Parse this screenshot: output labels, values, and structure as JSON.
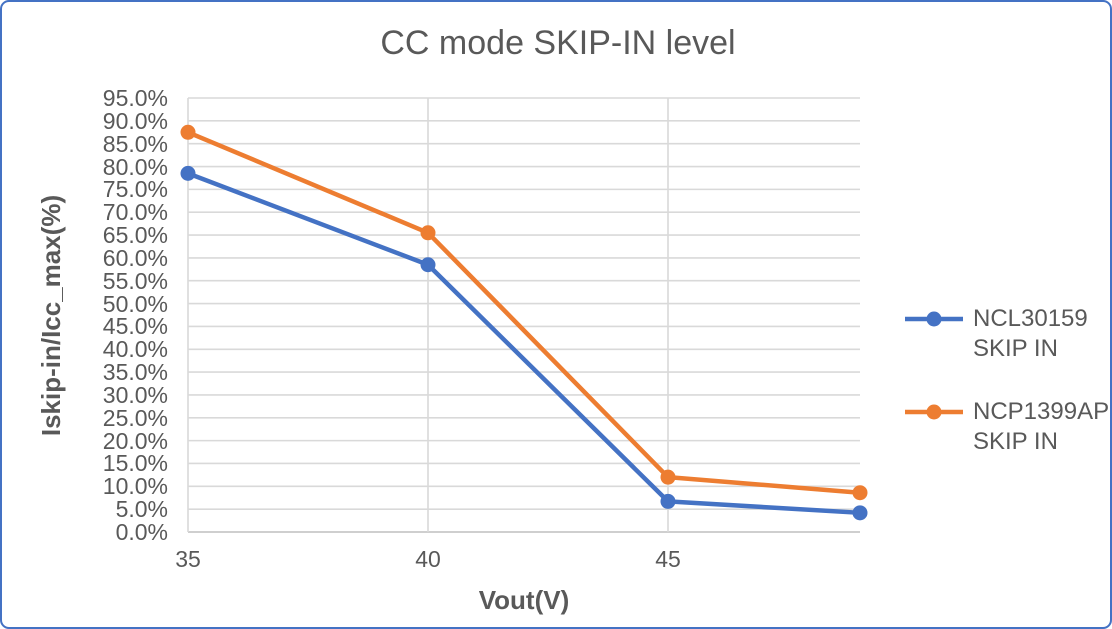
{
  "chart_style": {
    "border_color": "#4472C4",
    "background": "#FFFFFF",
    "text_color": "#595959",
    "gridline_color": "#D9D9D9",
    "axis_line_color": "#BFBFBF"
  },
  "chart_data": {
    "type": "line",
    "title": "CC mode SKIP-IN level",
    "xlabel": "Vout(V)",
    "ylabel": "Iskip-in/Icc_max(%)",
    "x": [
      35,
      40,
      45,
      49
    ],
    "series": [
      {
        "name": "NCL30159 SKIP IN",
        "color": "#4472C4",
        "marker": "circle",
        "values": [
          78.5,
          58.5,
          6.7,
          4.2
        ]
      },
      {
        "name": "NCP1399AP SKIP IN",
        "color": "#ED7D31",
        "marker": "circle",
        "values": [
          87.5,
          65.5,
          12.0,
          8.6
        ]
      }
    ],
    "xlim": [
      35,
      49
    ],
    "ylim": [
      0,
      95
    ],
    "grid": true,
    "legend_position": "right",
    "x_ticks": [
      {
        "value": 35,
        "label": "35"
      },
      {
        "value": 40,
        "label": "40"
      },
      {
        "value": 45,
        "label": "45"
      }
    ],
    "y_ticks": [
      {
        "value": 0,
        "label": "0.0%"
      },
      {
        "value": 5,
        "label": "5.0%"
      },
      {
        "value": 10,
        "label": "10.0%"
      },
      {
        "value": 15,
        "label": "15.0%"
      },
      {
        "value": 20,
        "label": "20.0%"
      },
      {
        "value": 25,
        "label": "25.0%"
      },
      {
        "value": 30,
        "label": "30.0%"
      },
      {
        "value": 35,
        "label": "35.0%"
      },
      {
        "value": 40,
        "label": "40.0%"
      },
      {
        "value": 45,
        "label": "45.0%"
      },
      {
        "value": 50,
        "label": "50.0%"
      },
      {
        "value": 55,
        "label": "55.0%"
      },
      {
        "value": 60,
        "label": "60.0%"
      },
      {
        "value": 65,
        "label": "65.0%"
      },
      {
        "value": 70,
        "label": "70.0%"
      },
      {
        "value": 75,
        "label": "75.0%"
      },
      {
        "value": 80,
        "label": "80.0%"
      },
      {
        "value": 85,
        "label": "85.0%"
      },
      {
        "value": 90,
        "label": "90.0%"
      },
      {
        "value": 95,
        "label": "95.0%"
      }
    ]
  },
  "legend": {
    "items": [
      {
        "label": "NCL30159 SKIP IN",
        "color": "#4472C4"
      },
      {
        "label": "NCP1399AP SKIP IN",
        "color": "#ED7D31"
      }
    ]
  }
}
